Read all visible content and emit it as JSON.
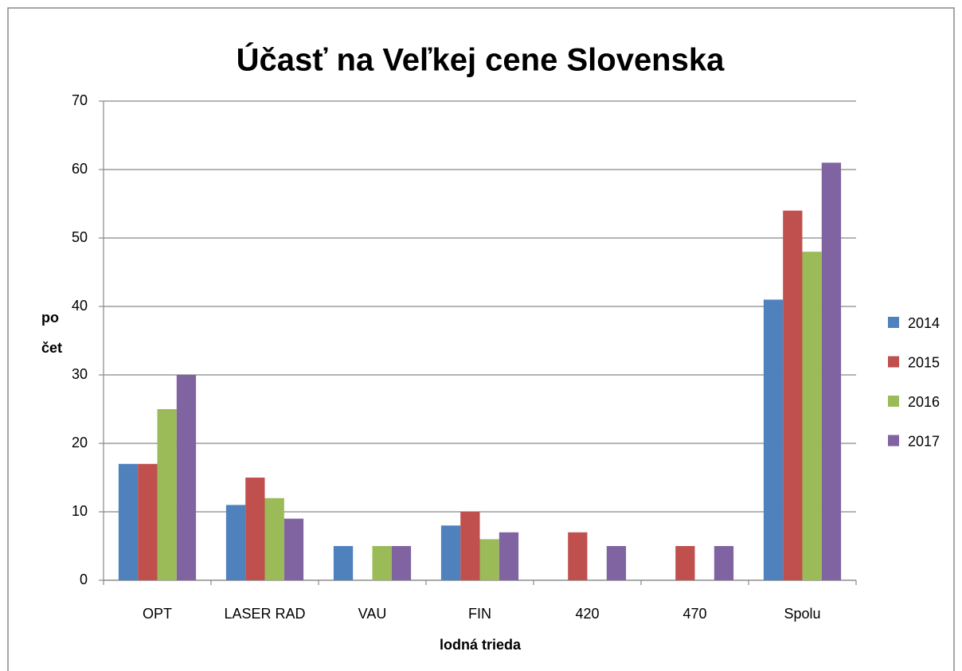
{
  "chart_data": {
    "type": "bar",
    "title": "Účasť na Veľkej cene Slovenska",
    "xlabel": "lodná trieda",
    "ylabel": "počet",
    "categories": [
      "OPT",
      "LASER RAD",
      "VAU",
      "FIN",
      "420",
      "470",
      "Spolu"
    ],
    "series": [
      {
        "name": "2014",
        "color": "#4f81bd",
        "values": [
          17,
          11,
          5,
          8,
          null,
          null,
          41
        ]
      },
      {
        "name": "2015",
        "color": "#c0504d",
        "values": [
          17,
          15,
          null,
          10,
          7,
          5,
          54
        ]
      },
      {
        "name": "2016",
        "color": "#9bbb59",
        "values": [
          25,
          12,
          5,
          6,
          null,
          null,
          48
        ]
      },
      {
        "name": "2017",
        "color": "#8064a2",
        "values": [
          30,
          9,
          5,
          7,
          5,
          5,
          61
        ]
      }
    ],
    "ylim": [
      0,
      70
    ],
    "yticks": [
      0,
      10,
      20,
      30,
      40,
      50,
      60,
      70
    ],
    "grid": true,
    "legend": "right"
  }
}
